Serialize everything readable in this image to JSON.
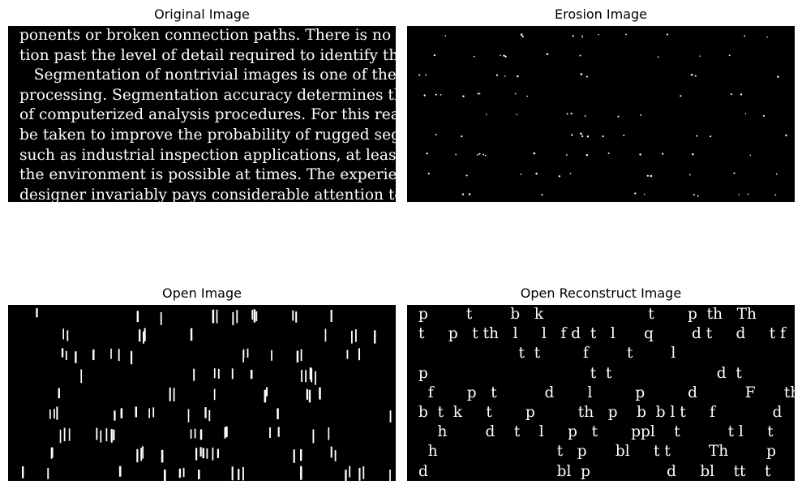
{
  "titles": {
    "original": "Original Image",
    "erosion": "Erosion Image",
    "open": "Open Image",
    "open_reconstruct": "Open Reconstruct Image"
  },
  "original_text_lines": [
    "ponents or broken connection paths. There is no poin",
    "tion past the level of detail required to identify those e",
    "   Segmentation of nontrivial images is one of the mos",
    "processing. Segmentation accuracy determines the eve",
    "of computerized analysis procedures. For this reason, c",
    "be taken to improve the probability of rugged segmenta",
    "such as industrial inspection applications, at least some",
    "the environment is possible at times. The experienced i",
    "designer invariably pays considerable attention to such"
  ],
  "reconstruct_text_lines": [
    "p        t        b   k                      t       p  th   Th                   p",
    "t     p   t th   l     l   f d  t   l      q        d t     d     t f   th",
    "                     t  t         f        t        l                          f th",
    "p                                  t  t                      d  t                  th",
    "  f       p   t          d       l         p         d          F      th",
    "b  t  k     t       p         th   p    b  b l t     f            d                  t",
    "    h        d    t    l     p   t       ppl    t          t l     t",
    "  h                         t   p      bl     t t        Th        p             d",
    "d                           bl  p                d     bl    tt    t      t        l"
  ],
  "colors": {
    "background": "#000000",
    "foreground": "#ffffff",
    "page": "#ffffff"
  }
}
